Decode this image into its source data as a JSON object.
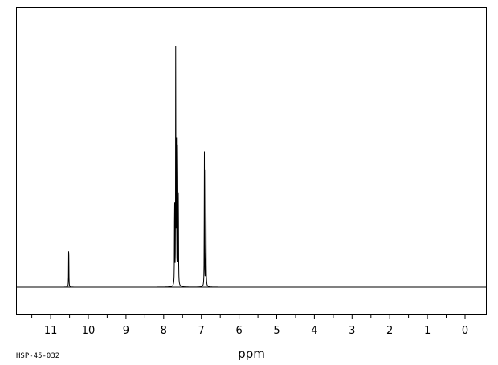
{
  "chart_data": {
    "type": "line",
    "xlabel": "ppm",
    "x_reversed": true,
    "xlim": [
      12.0,
      -0.6
    ],
    "ylim": [
      -0.12,
      1.0
    ],
    "grid": false,
    "legend": "none",
    "major_ticks": [
      11,
      10,
      9,
      8,
      7,
      6,
      5,
      4,
      3,
      2,
      1,
      0
    ],
    "tick_labels": [
      "11",
      "10",
      "9",
      "8",
      "7",
      "6",
      "5",
      "4",
      "3",
      "2",
      "1",
      "0"
    ],
    "series": [
      {
        "peaks": [
          {
            "ppm": 10.52,
            "intensity": 0.19
          },
          {
            "ppm": 7.71,
            "intensity": 0.39
          },
          {
            "ppm": 7.68,
            "intensity": 1.0
          },
          {
            "ppm": 7.66,
            "intensity": 0.53
          },
          {
            "ppm": 7.63,
            "intensity": 0.66
          },
          {
            "ppm": 7.61,
            "intensity": 0.41
          },
          {
            "ppm": 6.92,
            "intensity": 0.56
          },
          {
            "ppm": 6.88,
            "intensity": 0.53
          }
        ]
      }
    ]
  },
  "footer": {
    "code": "HSP-45-032"
  },
  "colors": {
    "line": "#000000",
    "background": "#ffffff"
  }
}
